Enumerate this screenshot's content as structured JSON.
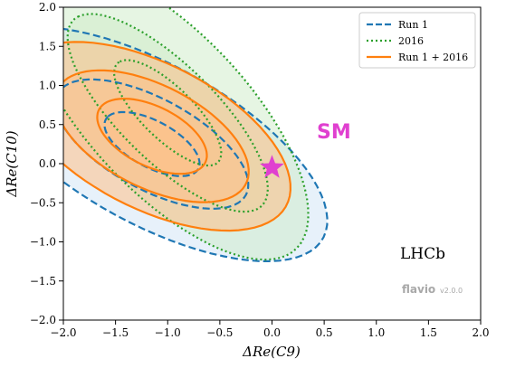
{
  "chart_data": {
    "type": "contour",
    "xlabel": "ΔRe(C9)",
    "ylabel": "ΔRe(C10)",
    "xlim": [
      -2.0,
      2.0
    ],
    "ylim": [
      -2.0,
      2.0
    ],
    "x_ticks": [
      "−2.0",
      "−1.5",
      "−1.0",
      "−0.5",
      "0.0",
      "0.5",
      "1.0",
      "1.5",
      "2.0"
    ],
    "y_ticks": [
      "−2.0",
      "−1.5",
      "−1.0",
      "−0.5",
      "0.0",
      "0.5",
      "1.0",
      "1.5",
      "2.0"
    ],
    "legend": {
      "placement": "top-right",
      "entries": [
        {
          "label": "Run 1",
          "color": "#1f77b4",
          "style": "dashed"
        },
        {
          "label": "2016",
          "color": "#2ca02c",
          "style": "dotted"
        },
        {
          "label": "Run 1 + 2016",
          "color": "#ff7f0e",
          "style": "solid"
        }
      ]
    },
    "series": [
      {
        "name": "Run 1",
        "color": "#1f77b4",
        "fill": "#cfe3f5",
        "center": [
          -1.15,
          0.25
        ],
        "contours": [
          {
            "level": 1,
            "r1": 0.55,
            "r2": 0.27,
            "angle": 40
          },
          {
            "level": 2,
            "r1": 1.12,
            "r2": 0.53,
            "angle": 40
          },
          {
            "level": 3,
            "r1": 2.05,
            "r2": 0.93,
            "angle": 40
          }
        ]
      },
      {
        "name": "2016",
        "color": "#2ca02c",
        "fill": "#cdebc8",
        "center": [
          -1.0,
          0.65
        ],
        "contours": [
          {
            "level": 1,
            "r1": 0.8,
            "r2": 0.28,
            "angle": 55
          },
          {
            "level": 2,
            "r1": 1.5,
            "r2": 0.52,
            "angle": 55
          },
          {
            "level": 3,
            "r1": 2.15,
            "r2": 0.85,
            "angle": 58
          }
        ]
      },
      {
        "name": "Run 1 + 2016",
        "color": "#ff7f0e",
        "fill": "#ffbf86",
        "center": [
          -1.15,
          0.35
        ],
        "contours": [
          {
            "level": 1,
            "r1": 0.62,
            "r2": 0.35,
            "angle": 40
          },
          {
            "level": 2,
            "r1": 1.1,
            "r2": 0.6,
            "angle": 40
          },
          {
            "level": 3,
            "r1": 1.58,
            "r2": 0.85,
            "angle": 40
          }
        ]
      }
    ],
    "sm_point": {
      "x": 0.0,
      "y": -0.05,
      "color": "#e040d0"
    },
    "annotations": {
      "sm": "SM",
      "experiment": "LHCb",
      "watermark": "flavio",
      "watermark_version": "v2.0.0"
    }
  }
}
